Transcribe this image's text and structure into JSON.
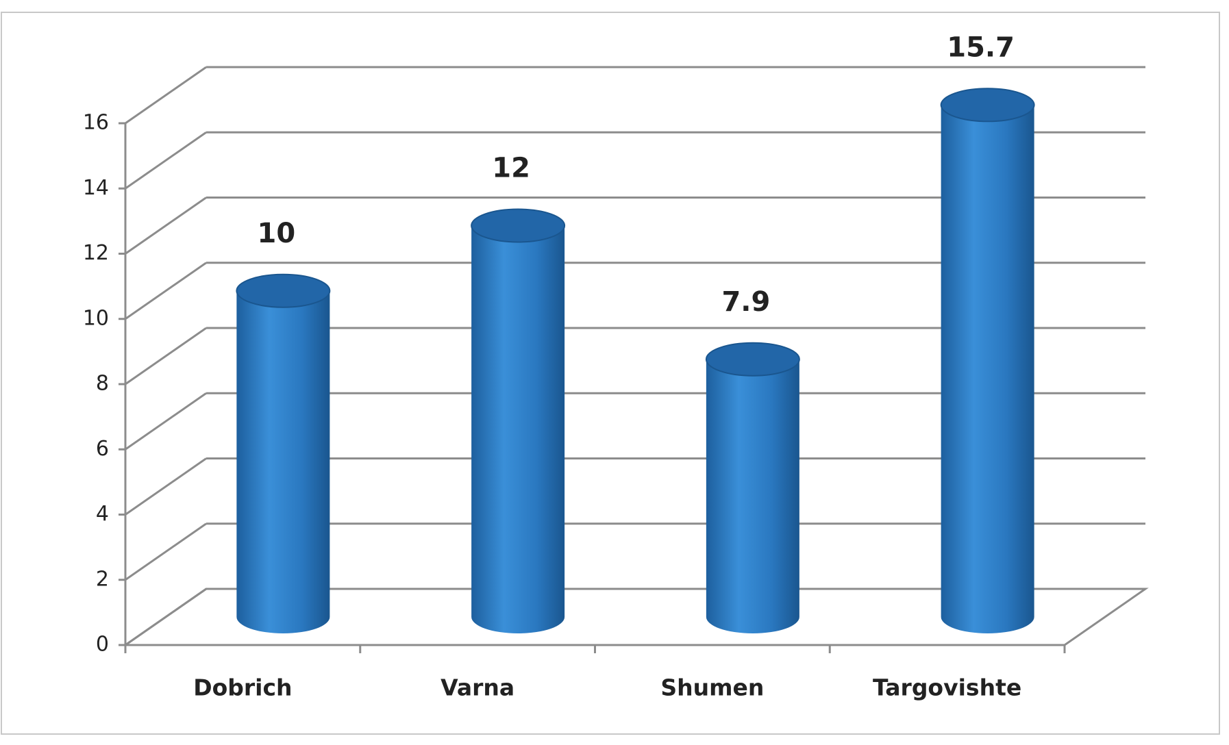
{
  "chart_data": {
    "type": "bar",
    "categories": [
      "Dobrich",
      "Varna",
      "Shumen",
      "Targovishte"
    ],
    "values": [
      10,
      12,
      7.9,
      15.7
    ],
    "color": "#2e7ec6",
    "ylim": [
      0,
      16
    ],
    "yticks": [
      0,
      2,
      4,
      6,
      8,
      10,
      12,
      14,
      16
    ],
    "grid": true
  }
}
